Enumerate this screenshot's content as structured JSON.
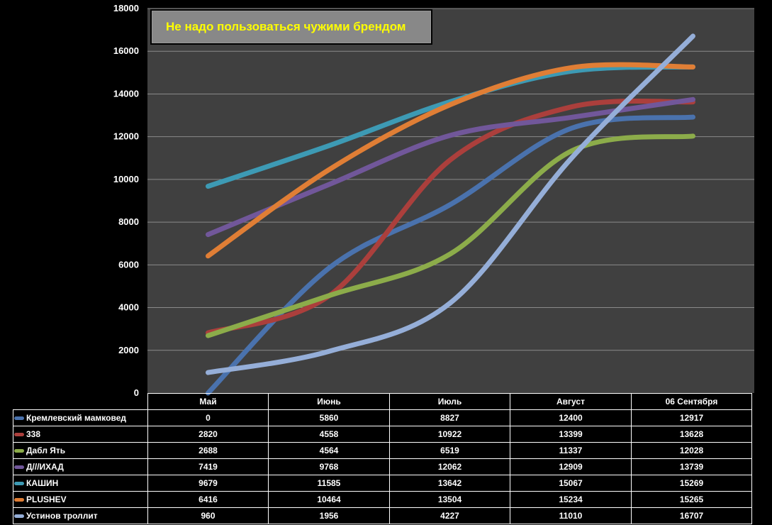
{
  "title": "Не надо пользоваться чужими брендом",
  "chart_data": {
    "type": "line",
    "categories": [
      "Май",
      "Июнь",
      "Июль",
      "Август",
      "06 Сентября"
    ],
    "ylim": [
      0,
      18000
    ],
    "yticks": [
      "0",
      "2000",
      "4000",
      "6000",
      "8000",
      "10000",
      "12000",
      "14000",
      "16000",
      "18000"
    ],
    "grid": true,
    "legend": "table-below",
    "plot_background": "#404040",
    "series": [
      {
        "name": "Кремлевский мамковед",
        "color": "#4a72ad",
        "values": [
          0,
          5860,
          8827,
          12400,
          12917
        ]
      },
      {
        "name": "338",
        "color": "#ab3f3c",
        "values": [
          2820,
          4558,
          10922,
          13399,
          13628
        ]
      },
      {
        "name": "Дабл Ять",
        "color": "#8cac4a",
        "values": [
          2688,
          4564,
          6519,
          11337,
          12028
        ]
      },
      {
        "name": "Д///ИХАД",
        "color": "#71579a",
        "values": [
          7419,
          9768,
          12062,
          12909,
          13739
        ]
      },
      {
        "name": "КАШИН",
        "color": "#3d9ab4",
        "values": [
          9679,
          11585,
          13642,
          15067,
          15269
        ]
      },
      {
        "name": "PLUSHEV",
        "color": "#e07e35",
        "values": [
          6416,
          10464,
          13504,
          15234,
          15265
        ]
      },
      {
        "name": "Устинов троллит",
        "color": "#95aed8",
        "values": [
          960,
          1956,
          4227,
          11010,
          16707
        ]
      }
    ]
  }
}
